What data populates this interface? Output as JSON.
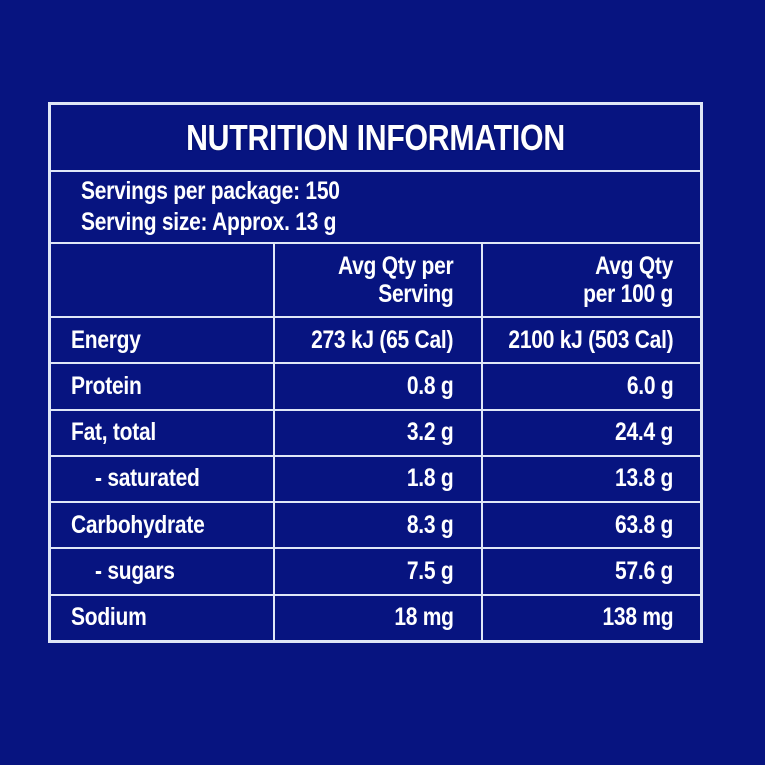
{
  "colors": {
    "background": "#071480",
    "line": "#dfe7f7",
    "text": "#ffffff"
  },
  "panel": {
    "title": "NUTRITION INFORMATION",
    "servings_per_package": "Servings per package: 150",
    "serving_size": "Serving size: Approx. 13 g",
    "columns": {
      "nutrient": "",
      "per_serving_line1": "Avg Qty per",
      "per_serving_line2": "Serving",
      "per_100g_line1": "Avg Qty",
      "per_100g_line2": "per 100 g"
    },
    "rows": [
      {
        "label": "Energy",
        "per_serving": "273 kJ (65 Cal)",
        "per_100g": "2100 kJ (503 Cal)"
      },
      {
        "label": "Protein",
        "per_serving": "0.8 g",
        "per_100g": "6.0 g"
      },
      {
        "label": "Fat, total",
        "per_serving": "3.2 g",
        "per_100g": "24.4 g"
      },
      {
        "label": "- saturated",
        "per_serving": "1.8 g",
        "per_100g": "13.8 g"
      },
      {
        "label": "Carbohydrate",
        "per_serving": "8.3 g",
        "per_100g": "63.8 g"
      },
      {
        "label": "- sugars",
        "per_serving": "7.5 g",
        "per_100g": "57.6 g"
      },
      {
        "label": "Sodium",
        "per_serving": "18 mg",
        "per_100g": "138 mg"
      }
    ]
  }
}
